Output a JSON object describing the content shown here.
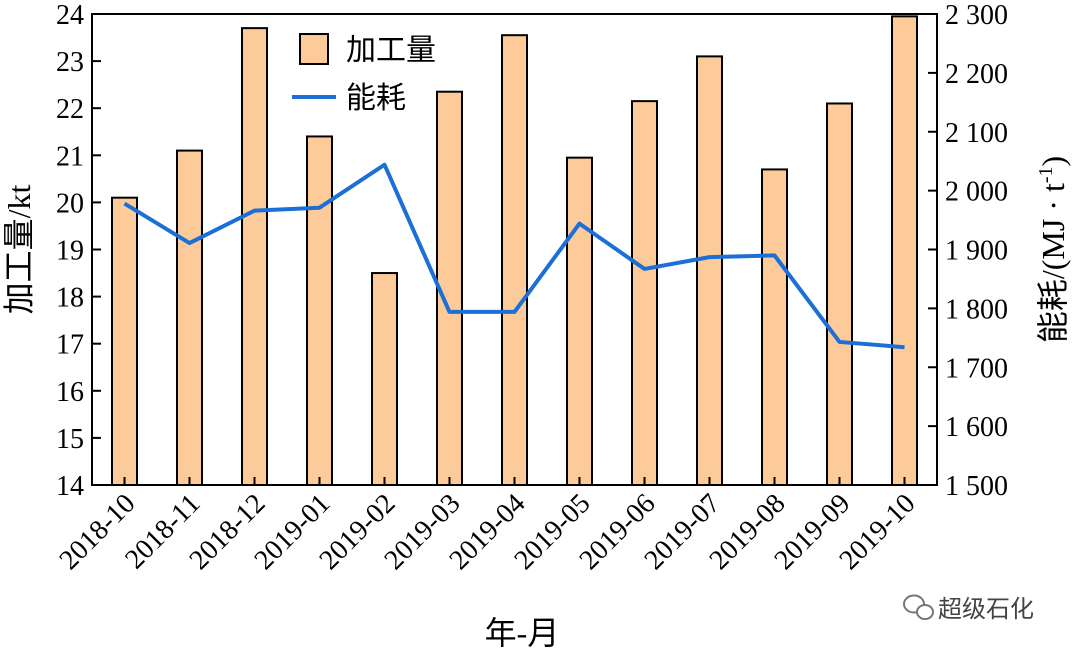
{
  "chart_data": {
    "type": "bar+line",
    "categories": [
      "2018-10",
      "2018-11",
      "2018-12",
      "2019-01",
      "2019-02",
      "2019-03",
      "2019-04",
      "2019-05",
      "2019-06",
      "2019-07",
      "2019-08",
      "2019-09",
      "2019-10"
    ],
    "series": [
      {
        "name": "加工量",
        "type": "bar",
        "axis": "left",
        "color": "#FDCB9A",
        "values": [
          20.1,
          21.1,
          23.7,
          21.4,
          18.5,
          22.35,
          23.55,
          20.95,
          22.15,
          23.1,
          20.7,
          22.1,
          23.95
        ]
      },
      {
        "name": "能耗",
        "type": "line",
        "axis": "right",
        "color": "#1C6FD6",
        "values": [
          1978,
          1911,
          1966,
          1971,
          2044,
          1794,
          1794,
          1944,
          1867,
          1887,
          1890,
          1743,
          1734
        ]
      }
    ],
    "xlabel": "年-月",
    "ylabel_left": "加工量/kt",
    "ylabel_right": "能耗/(MJ · t",
    "ylabel_right_sup": "-1",
    "ylabel_right_close": ")",
    "ylim_left": [
      14,
      24
    ],
    "yticks_left": [
      "14",
      "15",
      "16",
      "17",
      "18",
      "19",
      "20",
      "21",
      "22",
      "23",
      "24"
    ],
    "ylim_right": [
      1500,
      2300
    ],
    "yticks_right": [
      "1 500",
      "1 600",
      "1 700",
      "1 800",
      "1 900",
      "2 000",
      "2 100",
      "2 200",
      "2 300"
    ],
    "legend_position": "top-left",
    "grid": false
  },
  "watermark": "超级石化"
}
